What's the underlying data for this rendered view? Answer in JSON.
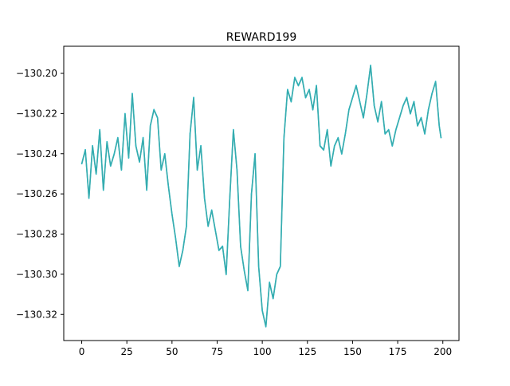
{
  "chart_data": {
    "type": "line",
    "title": "REWARD199",
    "xlabel": "",
    "ylabel": "",
    "xlim": [
      -9.95,
      208.95
    ],
    "ylim": [
      -130.333,
      -130.1865
    ],
    "x_ticks": [
      0,
      25,
      50,
      75,
      100,
      125,
      150,
      175,
      200
    ],
    "y_ticks": [
      -130.32,
      -130.3,
      -130.28,
      -130.26,
      -130.24,
      -130.22,
      -130.2
    ],
    "y_tick_labels": [
      "−130.32",
      "−130.30",
      "−130.28",
      "−130.26",
      "−130.24",
      "−130.22",
      "−130.20"
    ],
    "grid": false,
    "legend": "none",
    "colors": [
      "#2ab8c4",
      "#3aa8a8"
    ],
    "series": [
      {
        "x": [
          0,
          2,
          4,
          6,
          8,
          10,
          12,
          14,
          16,
          18,
          20,
          22,
          24,
          26,
          28,
          30,
          32,
          34,
          36,
          38,
          40,
          42,
          44,
          46,
          48,
          50,
          52,
          54,
          56,
          58,
          60,
          62,
          64,
          66,
          68,
          70,
          72,
          74,
          76,
          78,
          80,
          82,
          84,
          86,
          88,
          90,
          92,
          94,
          96,
          98,
          100,
          102,
          104,
          106,
          108,
          110,
          112,
          114,
          116,
          118,
          120,
          122,
          124,
          126,
          128,
          130,
          132,
          134,
          136,
          138,
          140,
          142,
          144,
          146,
          148,
          150,
          152,
          154,
          156,
          158,
          160,
          162,
          164,
          166,
          168,
          170,
          172,
          174,
          176,
          178,
          180,
          182,
          184,
          186,
          188,
          190,
          192,
          194,
          196,
          198,
          199
        ],
        "y": [
          -130.245,
          -130.238,
          -130.262,
          -130.236,
          -130.25,
          -130.228,
          -130.258,
          -130.234,
          -130.246,
          -130.24,
          -130.232,
          -130.248,
          -130.22,
          -130.242,
          -130.21,
          -130.236,
          -130.244,
          -130.232,
          -130.258,
          -130.226,
          -130.218,
          -130.222,
          -130.248,
          -130.24,
          -130.256,
          -130.27,
          -130.282,
          -130.296,
          -130.288,
          -130.276,
          -130.23,
          -130.212,
          -130.248,
          -130.236,
          -130.262,
          -130.276,
          -130.268,
          -130.278,
          -130.288,
          -130.286,
          -130.3,
          -130.262,
          -130.228,
          -130.248,
          -130.286,
          -130.298,
          -130.308,
          -130.26,
          -130.24,
          -130.296,
          -130.318,
          -130.326,
          -130.304,
          -130.312,
          -130.3,
          -130.296,
          -130.232,
          -130.208,
          -130.214,
          -130.202,
          -130.206,
          -130.202,
          -130.212,
          -130.208,
          -130.218,
          -130.206,
          -130.236,
          -130.238,
          -130.228,
          -130.246,
          -130.236,
          -130.232,
          -130.24,
          -130.23,
          -130.218,
          -130.212,
          -130.206,
          -130.214,
          -130.222,
          -130.21,
          -130.196,
          -130.216,
          -130.224,
          -130.214,
          -130.23,
          -130.228,
          -130.236,
          -130.228,
          -130.222,
          -130.216,
          -130.212,
          -130.22,
          -130.214,
          -130.226,
          -130.222,
          -130.23,
          -130.218,
          -130.21,
          -130.204,
          -130.226,
          -130.232
        ]
      }
    ]
  }
}
